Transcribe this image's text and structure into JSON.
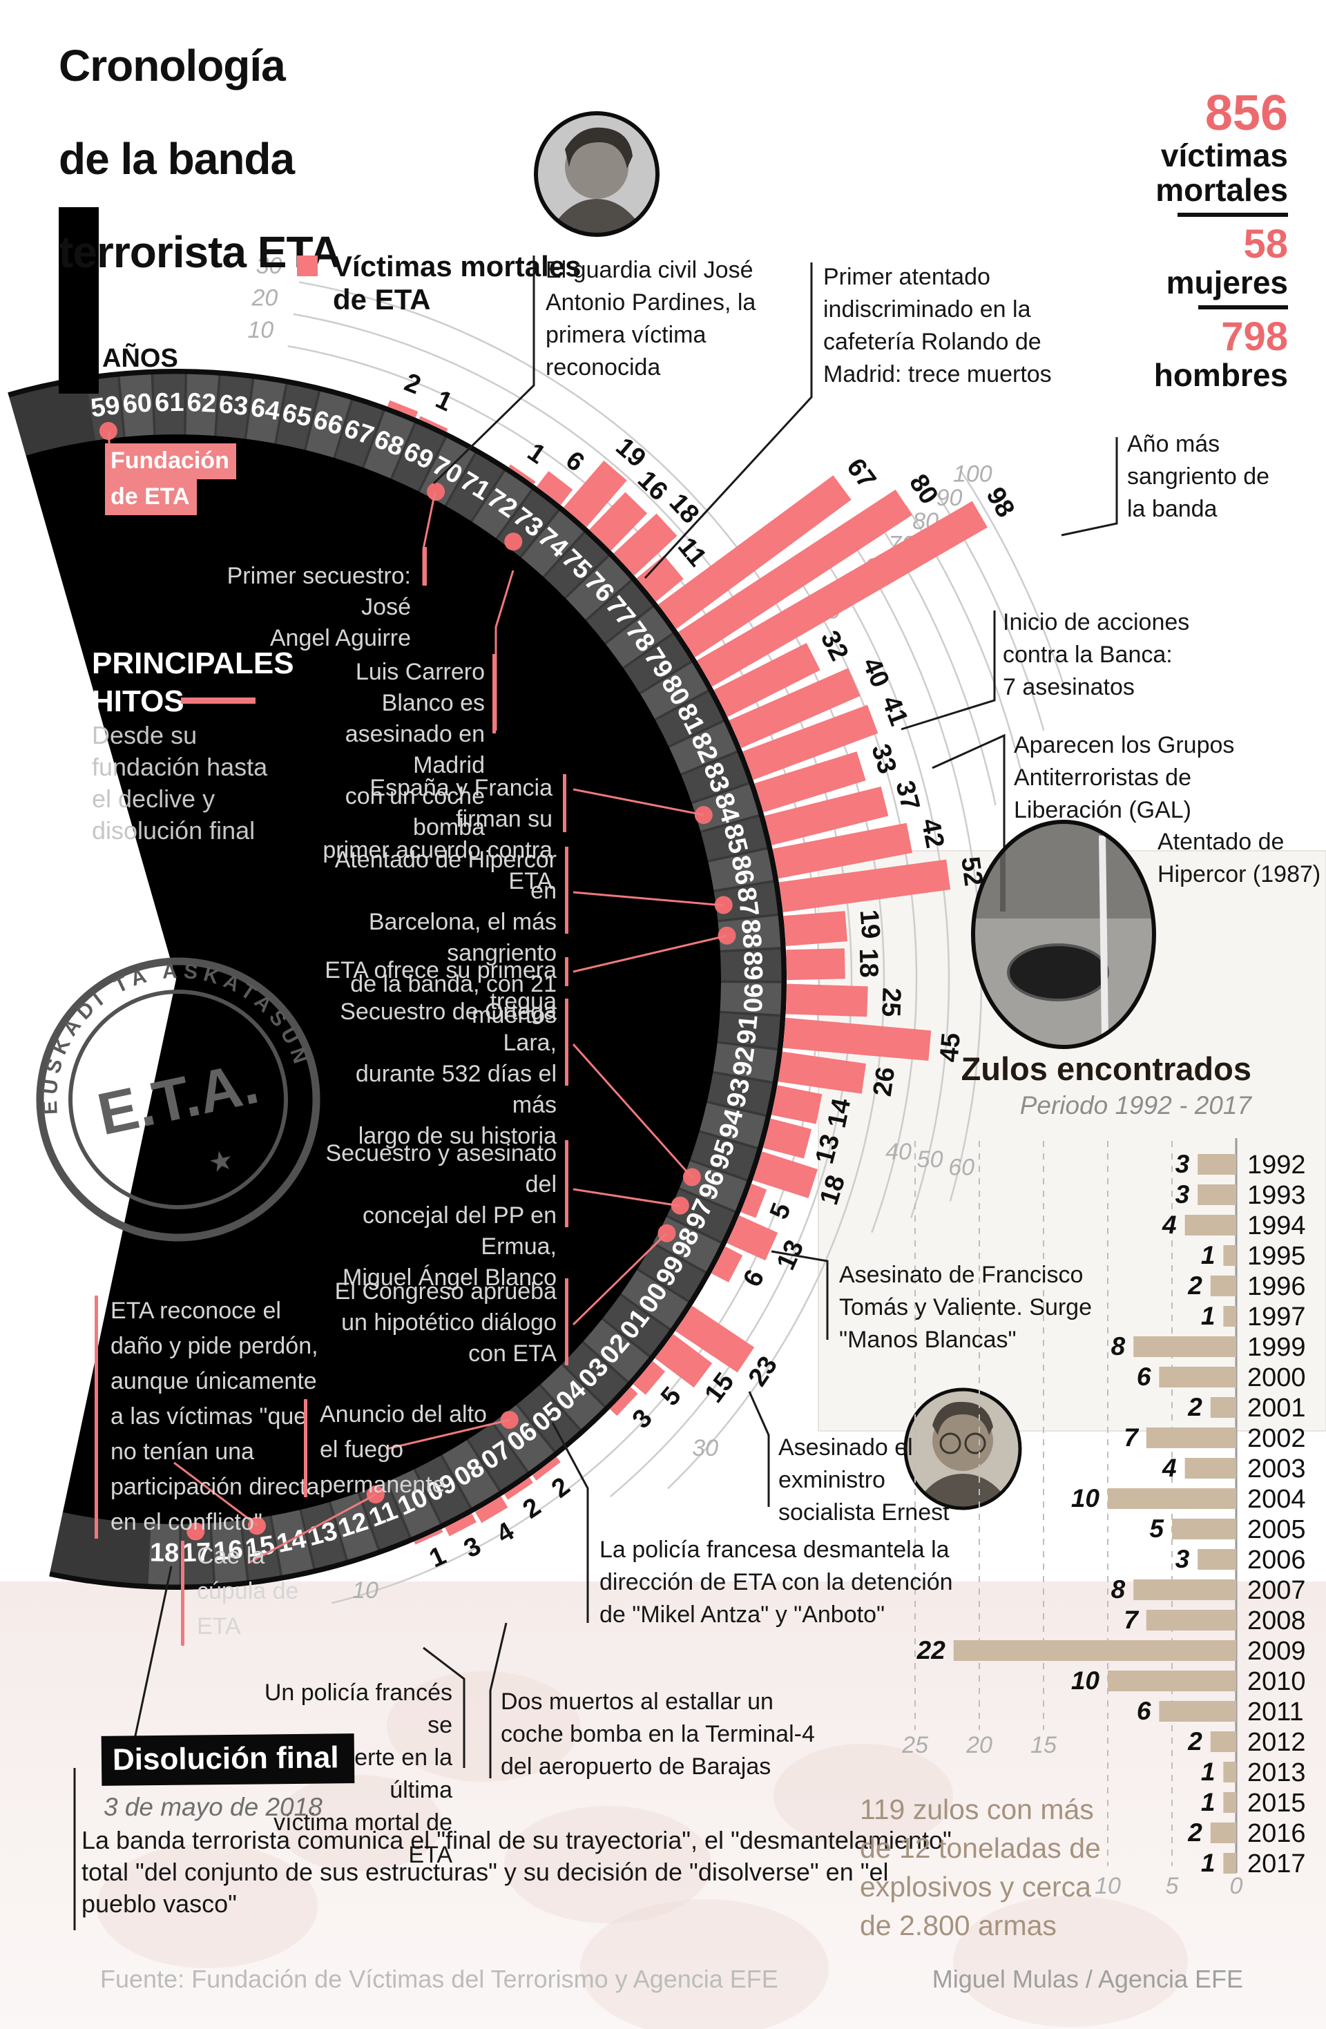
{
  "title": {
    "lines": [
      "Cronología",
      "de la banda",
      "terrorista ETA"
    ]
  },
  "stats": {
    "total": "856",
    "total_label_1": "víctimas",
    "total_label_2": "mortales",
    "women": "58",
    "women_label": "mujeres",
    "men": "798",
    "men_label": "hombres"
  },
  "legend": {
    "line1": "Víctimas mortales",
    "line2": "de ETA"
  },
  "years_axis_label": "AÑOS",
  "principales": {
    "line1": "PRINCIPALES",
    "line2": "HITOS",
    "desc": [
      "Desde su",
      "fundación hasta",
      "el declive y",
      "disolución final"
    ]
  },
  "fundacion": {
    "line1": "Fundación",
    "line2": "de ETA"
  },
  "callouts": {
    "pardines": [
      "El guardia civil José",
      "Antonio Pardines, la",
      "primera víctima",
      "reconocida"
    ],
    "rolando": [
      "Primer atentado",
      "indiscriminado en la",
      "cafetería Rolando de",
      "Madrid: trece muertos"
    ],
    "ano_sangriento": [
      "Año más",
      "sangriento de",
      "la banda"
    ],
    "banca": [
      "Inicio de acciones",
      "contra la Banca:",
      "7 asesinatos"
    ],
    "gal": [
      "Aparecen los Grupos",
      "Antiterroristas de",
      "Liberación (GAL)"
    ],
    "hipercor_foto": [
      "Atentado de",
      "Hipercor (1987)"
    ],
    "tomas": [
      "Asesinato de Francisco",
      "Tomás y Valiente. Surge",
      "\"Manos Blancas\""
    ],
    "ernest": [
      "Asesinado el",
      "exministro",
      "socialista Ernest"
    ],
    "mikel": [
      "La policía francesa desmantela la",
      "dirección de ETA con la detención",
      "de \"Mikel Antza\" y \"Anboto\""
    ],
    "un_policia": [
      "Un policía francés se",
      "convierte en la última",
      "víctima mortal de ETA"
    ],
    "dos_muertos": [
      "Dos muertos al estallar un",
      "coche bomba en la Terminal-4",
      "del aeropuerto de Barajas"
    ],
    "secuestro": [
      "Primer secuestro: José",
      "Angel Aguirre"
    ],
    "carrero": [
      "Luis Carrero Blanco es",
      "asesinado en Madrid",
      "con un coche bomba"
    ],
    "espana": [
      "España y Francia firman su",
      "primer acuerdo contra ETA"
    ],
    "hipercor": [
      "Atentado de Hipercor en",
      "Barcelona, el más sangriento",
      "de la banda, con 21 muertos"
    ],
    "tregua": [
      "ETA ofrece su primera tregua"
    ],
    "ortega": [
      "Secuestro de Ortega Lara,",
      "durante 532 días el más",
      "largo de su historia"
    ],
    "ermua": [
      "Secuestro y asesinato del",
      "concejal del PP en Ermua,",
      "Miguel Ángel Blanco"
    ],
    "congreso": [
      "El Congreso aprueba",
      "un hipotético diálogo",
      "con ETA"
    ],
    "reconoce": [
      "ETA reconoce el",
      "daño y pide perdón,",
      "aunque únicamente",
      "a las víctimas \"que",
      "no tenían una",
      "participación directa",
      "en el conflicto\""
    ],
    "cae": [
      "Cae la",
      "cúpula de",
      "ETA"
    ],
    "anuncio": [
      "Anuncio del alto",
      "el fuego",
      "permanente"
    ]
  },
  "disolucion": {
    "heading": "Disolución final",
    "date": "3 de mayo de 2018",
    "para": [
      "La banda terrorista comunica el \"final de su trayectoria\", el \"desmantelamiento\"",
      "total \"del conjunto de sus estructuras\" y su decisión de \"disolverse\" en \"el",
      "pueblo vasco\""
    ]
  },
  "stamp": {
    "text": "E.T.A.",
    "arc_text": "EUSKADI TA ASKATASUNA",
    "star": "★"
  },
  "footer": {
    "source": "Fuente: Fundación de Víctimas del Terrorismo y Agencia EFE",
    "credit": "Miguel Mulas / Agencia EFE"
  },
  "chart_data": [
    {
      "type": "bar",
      "variant": "radial",
      "title": "Víctimas mortales de ETA",
      "start_year": 1959,
      "categories": [
        "59",
        "60",
        "61",
        "62",
        "63",
        "64",
        "65",
        "66",
        "67",
        "68",
        "69",
        "70",
        "71",
        "72",
        "73",
        "74",
        "75",
        "76",
        "77",
        "78",
        "79",
        "80",
        "81",
        "82",
        "83",
        "84",
        "85",
        "86",
        "87",
        "88",
        "89",
        "90",
        "91",
        "92",
        "93",
        "94",
        "95",
        "96",
        "97",
        "98",
        "99",
        "00",
        "01",
        "02",
        "03",
        "04",
        "05",
        "06",
        "07",
        "08",
        "09",
        "10",
        "11",
        "12",
        "13",
        "14",
        "15",
        "16",
        "17",
        "18"
      ],
      "values": [
        0,
        0,
        0,
        0,
        0,
        0,
        0,
        0,
        0,
        2,
        1,
        0,
        0,
        1,
        6,
        19,
        16,
        18,
        11,
        67,
        80,
        98,
        32,
        40,
        41,
        33,
        37,
        42,
        52,
        19,
        18,
        25,
        45,
        26,
        14,
        13,
        18,
        5,
        13,
        6,
        0,
        23,
        15,
        5,
        3,
        0,
        0,
        2,
        2,
        4,
        3,
        1,
        0,
        0,
        0,
        0,
        0,
        0,
        0,
        0
      ],
      "rlim": [
        0,
        100
      ],
      "gridline_values": [
        10,
        20,
        30,
        40,
        50,
        60,
        70,
        80,
        90,
        100
      ],
      "milestone_years": [
        1959,
        1970,
        1973,
        1984,
        1987,
        1988,
        1996,
        1997,
        1998,
        2006,
        2011,
        2015,
        2017
      ],
      "bar_color": "#f5797d"
    },
    {
      "type": "bar",
      "variant": "horizontal",
      "title": "Zulos encontrados",
      "subtitle": "Periodo 1992 - 2017",
      "categories": [
        "1992",
        "1993",
        "1994",
        "1995",
        "1996",
        "1997",
        "1999",
        "2000",
        "2001",
        "2002",
        "2003",
        "2004",
        "2005",
        "2006",
        "2007",
        "2008",
        "2009",
        "2010",
        "2011",
        "2012",
        "2013",
        "2015",
        "2016",
        "2017"
      ],
      "values": [
        3,
        3,
        4,
        1,
        2,
        1,
        8,
        6,
        2,
        7,
        4,
        10,
        5,
        3,
        8,
        7,
        22,
        10,
        6,
        2,
        1,
        1,
        2,
        1
      ],
      "xlim": [
        0,
        25
      ],
      "axis_ticks": [
        25,
        20,
        15,
        10,
        5,
        0
      ],
      "note": [
        "119 zulos con más",
        "de 12 toneladas de",
        "explosivos y cerca",
        "de 2.800 armas"
      ],
      "bar_color": "#cbb9a2"
    }
  ]
}
